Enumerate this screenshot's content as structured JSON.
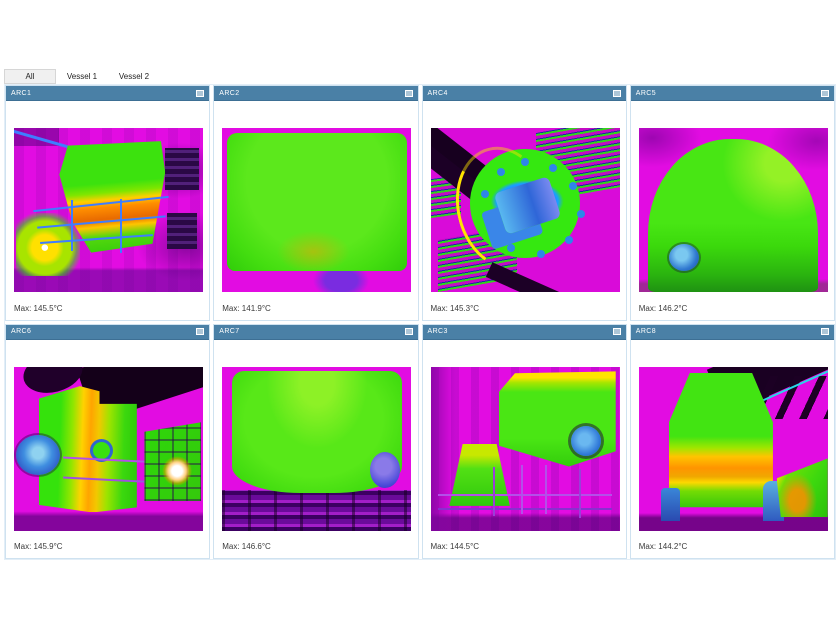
{
  "tabs": [
    {
      "label": "All",
      "active": true
    },
    {
      "label": "Vessel 1",
      "active": false
    },
    {
      "label": "Vessel 2",
      "active": false
    }
  ],
  "panels": [
    {
      "id": "ARC1",
      "max": "Max: 145.5°C"
    },
    {
      "id": "ARC2",
      "max": "Max: 141.9°C"
    },
    {
      "id": "ARC4",
      "max": "Max: 145.3°C"
    },
    {
      "id": "ARC5",
      "max": "Max: 146.2°C"
    },
    {
      "id": "ARC6",
      "max": "Max: 145.9°C"
    },
    {
      "id": "ARC7",
      "max": "Max: 146.6°C"
    },
    {
      "id": "ARC3",
      "max": "Max: 144.5°C"
    },
    {
      "id": "ARC8",
      "max": "Max: 144.2°C"
    }
  ],
  "icons": {
    "panel_header_icon": "popout-window-icon"
  },
  "colors": {
    "panel_header_bg": "#4a80a6",
    "panel_border": "#cfe2f0",
    "tab_active_bg": "#f0f0f0",
    "thermal_magenta": "#e20ce2",
    "thermal_green": "#44de10",
    "thermal_orange": "#ff9400",
    "thermal_blue": "#2f78d8"
  }
}
